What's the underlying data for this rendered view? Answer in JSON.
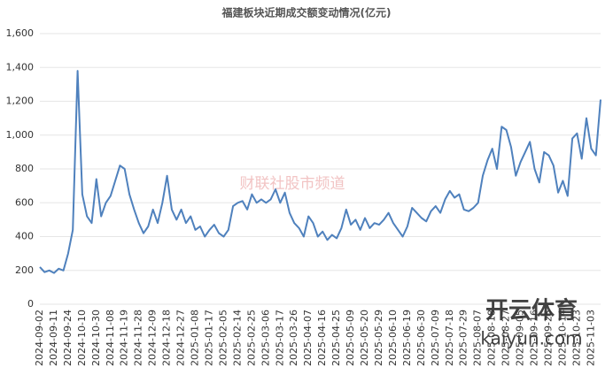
{
  "chart_data": {
    "type": "line",
    "title": "福建板块近期成交额变动情况(亿元)",
    "watermarks": [
      "财联社股市频道",
      "开云体育",
      "kaiyun.com"
    ],
    "color": "#4f81bd",
    "categories": [
      "2024-09-02",
      null,
      null,
      "2024-09-11",
      null,
      null,
      "2024-09-24",
      null,
      null,
      "2024-10-10",
      null,
      null,
      "2024-10-30",
      null,
      null,
      "2024-11-08",
      null,
      null,
      "2024-11-19",
      null,
      null,
      "2024-11-28",
      null,
      null,
      "2024-12-09",
      null,
      null,
      "2024-12-18",
      null,
      null,
      "2024-12-27",
      null,
      null,
      "2025-01-08",
      null,
      null,
      "2025-01-17",
      null,
      null,
      "2025-02-05",
      null,
      null,
      "2025-02-14",
      null,
      null,
      "2025-02-25",
      null,
      null,
      "2025-03-06",
      null,
      null,
      "2025-03-17",
      null,
      null,
      "2025-03-26",
      null,
      null,
      "2025-04-07",
      null,
      null,
      "2025-04-16",
      null,
      null,
      "2025-04-25",
      null,
      null,
      "2025-05-09",
      null,
      null,
      "2025-05-20",
      null,
      null,
      "2025-05-29",
      null,
      null,
      "2025-06-10",
      null,
      null,
      "2025-06-19",
      null,
      null,
      "2025-06-30",
      null,
      null,
      "2025-07-09",
      null,
      null,
      "2025-07-18",
      null,
      null,
      "2025-07-29",
      null,
      null,
      "2025-08-07",
      null,
      null,
      "2025-08-18",
      null,
      null,
      "2025-08-27",
      null,
      null,
      "2025-09-05",
      null,
      null,
      "2025-09-16",
      null,
      null,
      "2025-09-25",
      null,
      null,
      "2025-10-14",
      null,
      null,
      "2025-10-23",
      null,
      null,
      "2025-11-03",
      null,
      null
    ],
    "values": [
      220,
      190,
      200,
      185,
      210,
      200,
      300,
      440,
      1380,
      650,
      520,
      480,
      740,
      520,
      600,
      640,
      730,
      820,
      800,
      650,
      560,
      480,
      420,
      460,
      560,
      480,
      600,
      760,
      560,
      500,
      560,
      480,
      520,
      440,
      460,
      400,
      440,
      470,
      420,
      400,
      440,
      580,
      600,
      610,
      560,
      650,
      600,
      620,
      600,
      620,
      680,
      600,
      660,
      540,
      480,
      450,
      400,
      520,
      480,
      400,
      430,
      380,
      410,
      390,
      450,
      560,
      470,
      500,
      440,
      510,
      450,
      480,
      470,
      500,
      540,
      480,
      440,
      400,
      460,
      570,
      540,
      510,
      490,
      550,
      580,
      540,
      620,
      670,
      630,
      650,
      560,
      550,
      570,
      600,
      760,
      850,
      920,
      800,
      1050,
      1030,
      930,
      760,
      840,
      900,
      960,
      800,
      720,
      900,
      880,
      820,
      660,
      730,
      640,
      980,
      1010,
      860,
      1100,
      920,
      880,
      1210
    ],
    "ylim": [
      0,
      1600
    ],
    "yticks": [
      0,
      200,
      400,
      600,
      800,
      {
        "value": 1000,
        "label": "1,000"
      },
      {
        "value": 1200,
        "label": "1,200"
      },
      {
        "value": 1400,
        "label": "1,400"
      },
      {
        "value": 1600,
        "label": "1,600"
      }
    ],
    "grid": true
  }
}
